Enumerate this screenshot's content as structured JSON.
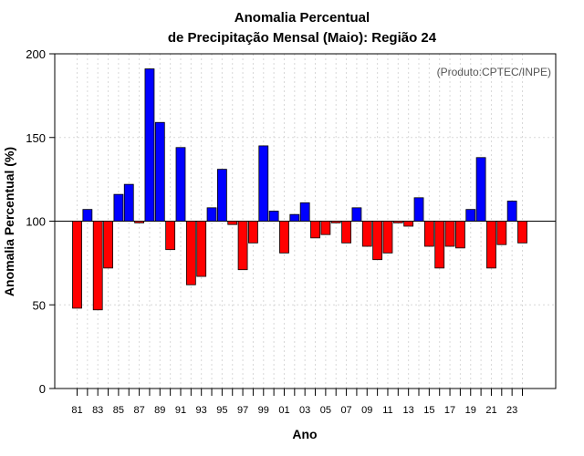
{
  "chart_data": {
    "type": "bar",
    "title_line1": "Anomalia Percentual",
    "title_line2": "de Precipitação Mensal (Maio): Região 24",
    "xlabel": "Ano",
    "ylabel": "Anomalia Percentual (%)",
    "source": "(Produto:CPTEC/INPE)",
    "baseline": 100,
    "ylim": [
      0,
      200
    ],
    "yticks": [
      0,
      50,
      100,
      150,
      200
    ],
    "above_color": "#0000ff",
    "below_color": "#ff0000",
    "categories": [
      "81",
      "82",
      "83",
      "84",
      "85",
      "86",
      "87",
      "88",
      "89",
      "90",
      "91",
      "92",
      "93",
      "94",
      "95",
      "96",
      "97",
      "98",
      "99",
      "00",
      "01",
      "02",
      "03",
      "04",
      "05",
      "06",
      "07",
      "08",
      "09",
      "10",
      "11",
      "12",
      "13",
      "14",
      "15",
      "16",
      "17",
      "18",
      "19",
      "20",
      "21",
      "22",
      "23",
      "24"
    ],
    "xtick_labels": [
      "81",
      "83",
      "85",
      "87",
      "89",
      "91",
      "93",
      "95",
      "97",
      "99",
      "01",
      "03",
      "05",
      "07",
      "09",
      "11",
      "13",
      "15",
      "17",
      "19",
      "21",
      "23"
    ],
    "values": [
      48,
      107,
      47,
      72,
      116,
      122,
      99,
      191,
      159,
      83,
      144,
      62,
      67,
      108,
      131,
      98,
      71,
      87,
      145,
      106,
      81,
      104,
      111,
      90,
      92,
      99,
      87,
      108,
      85,
      77,
      81,
      99,
      97,
      114,
      85,
      72,
      85,
      84,
      107,
      138,
      72,
      86,
      112,
      87
    ]
  }
}
